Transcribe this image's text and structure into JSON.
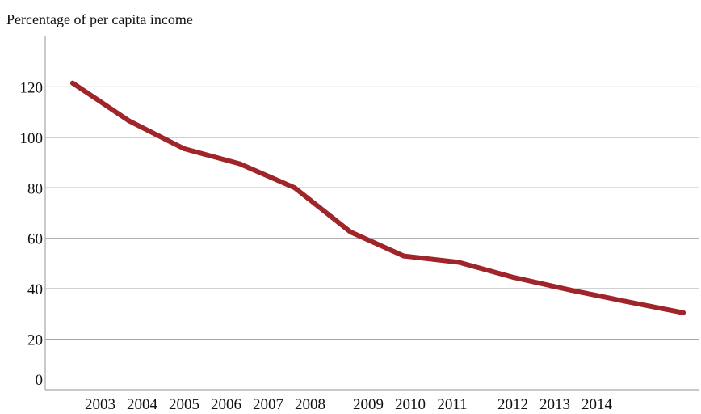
{
  "chart_data": {
    "type": "line",
    "title": "Percentage of per capita income",
    "xlabel": "",
    "ylabel": "",
    "categories": [
      "2003",
      "2004",
      "2005",
      "2006",
      "2007",
      "2008",
      "2009",
      "2010",
      "2011",
      "2012",
      "2013",
      "2014"
    ],
    "x_tick_labels": [
      "2003",
      "2004",
      "2005",
      "2006",
      "2007",
      "2008",
      "2009",
      "2010",
      "2011",
      "2012",
      "2013",
      "2014"
    ],
    "y_tick_labels": [
      "0",
      "20",
      "40",
      "60",
      "80",
      "100",
      "120"
    ],
    "ylim": [
      0,
      140
    ],
    "y_ticks": [
      0,
      20,
      40,
      60,
      80,
      100,
      120
    ],
    "grid": true,
    "legend": "none",
    "series": [
      {
        "color": "#a0252a",
        "values": [
          121.5,
          106.5,
          95.5,
          89.5,
          80,
          62.5,
          53,
          50.5,
          44.5,
          39.5,
          35,
          30.5
        ]
      }
    ],
    "colors": {
      "line": "#a0252a",
      "grid": "#a6a6a6",
      "axis": "#a6a6a6"
    }
  }
}
